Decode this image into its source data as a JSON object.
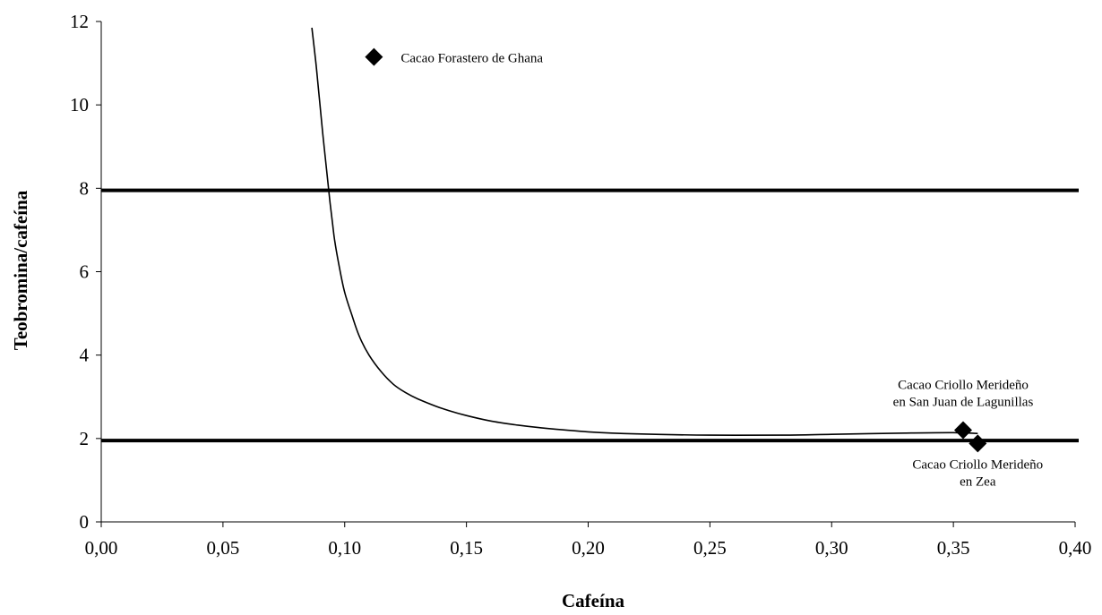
{
  "chart_data": {
    "type": "scatter",
    "title": "",
    "xlabel": "Cafeína",
    "ylabel": "Teobromina/cafeína",
    "xlim": [
      0.0,
      0.4
    ],
    "ylim": [
      0,
      12
    ],
    "x_ticks": [
      {
        "value": 0.0,
        "label": "0,00"
      },
      {
        "value": 0.05,
        "label": "0,05"
      },
      {
        "value": 0.1,
        "label": "0,10"
      },
      {
        "value": 0.15,
        "label": "0,15"
      },
      {
        "value": 0.2,
        "label": "0,20"
      },
      {
        "value": 0.25,
        "label": "0,25"
      },
      {
        "value": 0.3,
        "label": "0,30"
      },
      {
        "value": 0.35,
        "label": "0,35"
      },
      {
        "value": 0.4,
        "label": "0,40"
      }
    ],
    "y_ticks": [
      {
        "value": 0,
        "label": "0"
      },
      {
        "value": 2,
        "label": "2"
      },
      {
        "value": 4,
        "label": "4"
      },
      {
        "value": 6,
        "label": "6"
      },
      {
        "value": 8,
        "label": "8"
      },
      {
        "value": 10,
        "label": "10"
      },
      {
        "value": 12,
        "label": "12"
      }
    ],
    "grid": false,
    "legend": "none",
    "points": [
      {
        "x": 0.112,
        "y": 11.15,
        "label_lines": [
          "Cacao Forastero de Ghana"
        ]
      },
      {
        "x": 0.354,
        "y": 2.2,
        "label_lines": [
          "Cacao Criollo Merideño",
          "en San Juan de Lagunillas"
        ]
      },
      {
        "x": 0.36,
        "y": 1.88,
        "label_lines": [
          "Cacao Criollo Merideño",
          "en Zea"
        ]
      }
    ],
    "reference_lines": [
      {
        "orientation": "horizontal",
        "y": 7.95
      },
      {
        "orientation": "horizontal",
        "y": 1.95
      }
    ],
    "curve": {
      "x": [
        0.0865,
        0.088,
        0.089,
        0.09,
        0.091,
        0.092,
        0.093,
        0.094,
        0.095,
        0.096,
        0.098,
        0.1,
        0.103,
        0.106,
        0.11,
        0.115,
        0.12,
        0.125,
        0.13,
        0.14,
        0.15,
        0.16,
        0.17,
        0.18,
        0.2,
        0.22,
        0.25,
        0.28,
        0.3,
        0.33,
        0.35,
        0.36
      ],
      "y": [
        11.85,
        11.1,
        10.5,
        9.9,
        9.3,
        8.75,
        8.2,
        7.65,
        7.15,
        6.7,
        6.05,
        5.5,
        4.95,
        4.45,
        4.0,
        3.6,
        3.3,
        3.1,
        2.95,
        2.72,
        2.55,
        2.42,
        2.33,
        2.26,
        2.16,
        2.11,
        2.08,
        2.08,
        2.1,
        2.13,
        2.14,
        2.12
      ]
    },
    "colors": {
      "marks": "#000000",
      "background": "#ffffff"
    }
  }
}
